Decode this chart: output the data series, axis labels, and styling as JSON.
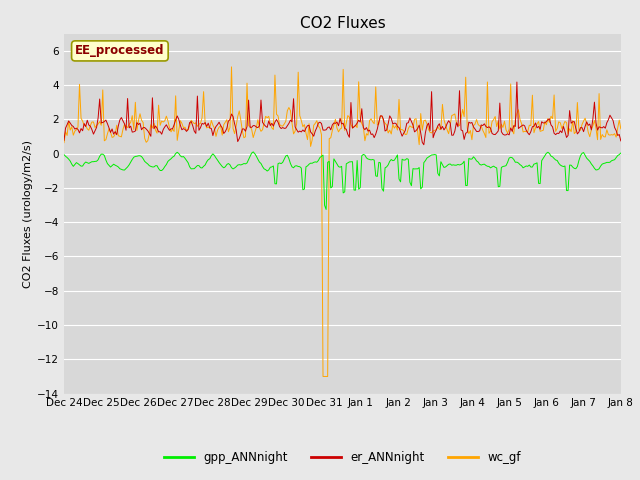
{
  "title": "CO2 Fluxes",
  "ylabel": "CO2 Fluxes (urology/m2/s)",
  "xlabel": "",
  "ylim": [
    -14,
    7
  ],
  "yticks": [
    -14,
    -12,
    -10,
    -8,
    -6,
    -4,
    -2,
    0,
    2,
    4,
    6
  ],
  "fig_bg_color": "#e8e8e8",
  "plot_bg_color": "#d8d8d8",
  "grid_color": "#ffffff",
  "line_colors": {
    "gpp": "#00ee00",
    "er": "#cc0000",
    "wc": "#ffa500"
  },
  "legend_label": "EE_processed",
  "legend_label_color": "#8b0000",
  "legend_box_color": "#ffffcc",
  "legend_box_edge": "#999900",
  "series_labels": [
    "gpp_ANNnight",
    "er_ANNnight",
    "wc_gf"
  ],
  "xtick_labels": [
    "Dec 24",
    "Dec 25",
    "Dec 26",
    "Dec 27",
    "Dec 28",
    "Dec 29",
    "Dec 30",
    "Dec 31",
    "Jan 1",
    "Jan 2",
    "Jan 3",
    "Jan 4",
    "Jan 5",
    "Jan 6",
    "Jan 7",
    "Jan 8"
  ],
  "title_fontsize": 11,
  "label_fontsize": 8,
  "tick_fontsize": 7.5,
  "linewidth": 0.7
}
